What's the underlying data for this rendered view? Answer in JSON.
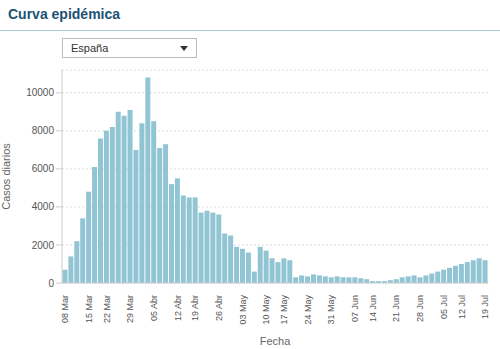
{
  "chart_data": {
    "type": "bar",
    "title": "Curva epidémica",
    "annotations": [
      "España"
    ],
    "xlabel": "Fecha",
    "ylabel": "Casos diarios",
    "categories": [
      "08 Mar",
      null,
      null,
      null,
      "15 Mar",
      null,
      null,
      "22 Mar",
      null,
      null,
      null,
      "29 Mar",
      null,
      null,
      null,
      "05 Abr",
      null,
      null,
      null,
      "12 Abr",
      null,
      null,
      "19 Abr",
      null,
      null,
      null,
      "26 Abr",
      null,
      null,
      null,
      "03 May",
      null,
      null,
      null,
      "10 May",
      null,
      null,
      "17 May",
      null,
      null,
      null,
      "24 May",
      null,
      null,
      null,
      "31 May",
      null,
      null,
      null,
      "07 Jun",
      null,
      null,
      "14 Jun",
      null,
      null,
      null,
      "21 Jun",
      null,
      null,
      null,
      "28 Jun",
      null,
      null,
      null,
      "05 Jul",
      null,
      null,
      "12 Jul",
      null,
      null,
      null,
      "19 Jul"
    ],
    "values": [
      700,
      1400,
      2200,
      3400,
      4800,
      6100,
      7600,
      8000,
      8200,
      9000,
      8800,
      9100,
      7000,
      8400,
      10800,
      8500,
      7100,
      7300,
      5200,
      5500,
      4600,
      4500,
      4500,
      3700,
      3800,
      3700,
      3600,
      2600,
      2500,
      1900,
      1800,
      1600,
      600,
      1900,
      1700,
      1300,
      1100,
      1300,
      1200,
      300,
      400,
      350,
      450,
      400,
      350,
      300,
      350,
      300,
      300,
      300,
      250,
      200,
      100,
      100,
      100,
      150,
      200,
      300,
      350,
      400,
      300,
      400,
      500,
      600,
      700,
      800,
      900,
      1000,
      1100,
      1200,
      1300,
      1200
    ],
    "color": "#92c5d4",
    "ylim": [
      0,
      11200
    ],
    "yticks": [
      0,
      2000,
      4000,
      6000,
      8000,
      10000
    ],
    "grid": true
  }
}
